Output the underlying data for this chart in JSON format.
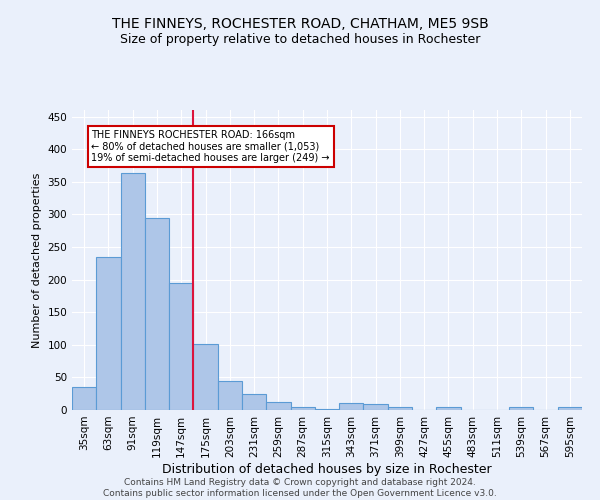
{
  "title1": "THE FINNEYS, ROCHESTER ROAD, CHATHAM, ME5 9SB",
  "title2": "Size of property relative to detached houses in Rochester",
  "xlabel": "Distribution of detached houses by size in Rochester",
  "ylabel": "Number of detached properties",
  "categories": [
    "35sqm",
    "63sqm",
    "91sqm",
    "119sqm",
    "147sqm",
    "175sqm",
    "203sqm",
    "231sqm",
    "259sqm",
    "287sqm",
    "315sqm",
    "343sqm",
    "371sqm",
    "399sqm",
    "427sqm",
    "455sqm",
    "483sqm",
    "511sqm",
    "539sqm",
    "567sqm",
    "595sqm"
  ],
  "values": [
    35,
    234,
    363,
    294,
    195,
    101,
    44,
    24,
    13,
    4,
    1,
    10,
    9,
    4,
    0,
    4,
    0,
    0,
    4,
    0,
    4
  ],
  "bar_color": "#aec6e8",
  "bar_edge_color": "#5b9bd5",
  "red_line_x": 4.5,
  "annotation_text": "THE FINNEYS ROCHESTER ROAD: 166sqm\n← 80% of detached houses are smaller (1,053)\n19% of semi-detached houses are larger (249) →",
  "annotation_box_color": "#ffffff",
  "annotation_box_edge_color": "#cc0000",
  "footer_text": "Contains HM Land Registry data © Crown copyright and database right 2024.\nContains public sector information licensed under the Open Government Licence v3.0.",
  "background_color": "#eaf0fb",
  "grid_color": "#ffffff",
  "ylim": [
    0,
    460
  ],
  "title1_fontsize": 10,
  "title2_fontsize": 9,
  "xlabel_fontsize": 9,
  "ylabel_fontsize": 8,
  "tick_fontsize": 7.5,
  "footer_fontsize": 6.5
}
